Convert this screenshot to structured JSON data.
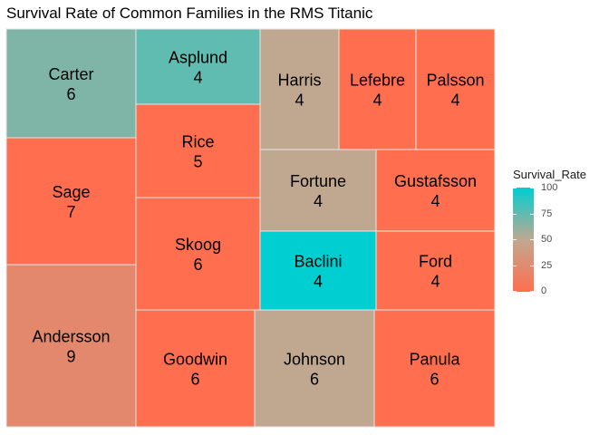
{
  "chart_data": {
    "type": "treemap",
    "title": "Survival Rate of Common Families in the RMS Titanic",
    "size_field": "count",
    "color_field": "Survival_Rate",
    "tiles": [
      {
        "name": "Carter",
        "count": 6,
        "survival_rate": 67
      },
      {
        "name": "Sage",
        "count": 7,
        "survival_rate": 0
      },
      {
        "name": "Andersson",
        "count": 9,
        "survival_rate": 22
      },
      {
        "name": "Asplund",
        "count": 4,
        "survival_rate": 75
      },
      {
        "name": "Rice",
        "count": 5,
        "survival_rate": 0
      },
      {
        "name": "Skoog",
        "count": 6,
        "survival_rate": 0
      },
      {
        "name": "Goodwin",
        "count": 6,
        "survival_rate": 0
      },
      {
        "name": "Harris",
        "count": 4,
        "survival_rate": 50
      },
      {
        "name": "Lefebre",
        "count": 4,
        "survival_rate": 0
      },
      {
        "name": "Palsson",
        "count": 4,
        "survival_rate": 0
      },
      {
        "name": "Fortune",
        "count": 4,
        "survival_rate": 50
      },
      {
        "name": "Gustafsson",
        "count": 4,
        "survival_rate": 0
      },
      {
        "name": "Baclini",
        "count": 4,
        "survival_rate": 100
      },
      {
        "name": "Ford",
        "count": 4,
        "survival_rate": 0
      },
      {
        "name": "Johnson",
        "count": 6,
        "survival_rate": 50
      },
      {
        "name": "Panula",
        "count": 6,
        "survival_rate": 0
      }
    ],
    "legend": {
      "title": "Survival_Rate",
      "ticks": [
        "100",
        "75",
        "50",
        "25",
        "0"
      ],
      "range": [
        0,
        100
      ],
      "colors": {
        "low": "#ff6f4f",
        "mid": "#c0a890",
        "high": "#00ced1"
      }
    }
  }
}
